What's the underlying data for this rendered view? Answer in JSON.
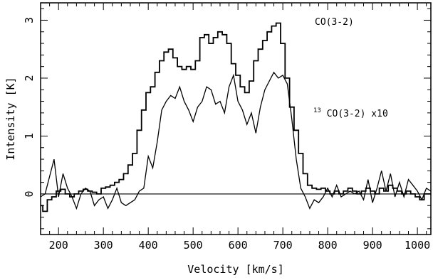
{
  "chart_data": {
    "type": "line",
    "xlabel": "Velocity  [km/s]",
    "ylabel": "Intensity [K]",
    "xlim": [
      160,
      1030
    ],
    "ylim": [
      -0.7,
      3.3
    ],
    "x_ticks": [
      200,
      300,
      400,
      500,
      600,
      700,
      800,
      900,
      1000
    ],
    "y_ticks": [
      0,
      1,
      2,
      3
    ],
    "zero_line": true,
    "series": [
      {
        "name": "CO(3-2)",
        "label_main": "CO(3-2)",
        "style": "step",
        "color": "#000000",
        "x": [
          160,
          170,
          180,
          190,
          200,
          210,
          220,
          230,
          240,
          250,
          260,
          270,
          280,
          290,
          300,
          310,
          320,
          330,
          340,
          350,
          360,
          370,
          380,
          390,
          400,
          410,
          420,
          430,
          440,
          450,
          460,
          470,
          480,
          490,
          500,
          510,
          520,
          530,
          540,
          550,
          560,
          570,
          580,
          590,
          600,
          610,
          620,
          630,
          640,
          650,
          660,
          670,
          680,
          690,
          700,
          710,
          720,
          730,
          740,
          750,
          760,
          770,
          780,
          790,
          800,
          810,
          820,
          830,
          840,
          850,
          860,
          870,
          880,
          890,
          900,
          910,
          920,
          930,
          940,
          950,
          960,
          970,
          980,
          990,
          1000,
          1010,
          1020,
          1030
        ],
        "y": [
          -0.2,
          -0.3,
          -0.1,
          -0.05,
          0.05,
          0.08,
          0.0,
          -0.05,
          0.0,
          0.05,
          0.08,
          0.05,
          0.03,
          0.0,
          0.1,
          0.12,
          0.15,
          0.2,
          0.25,
          0.35,
          0.5,
          0.7,
          1.1,
          1.45,
          1.75,
          1.85,
          2.1,
          2.3,
          2.45,
          2.5,
          2.35,
          2.2,
          2.15,
          2.2,
          2.15,
          2.3,
          2.7,
          2.75,
          2.6,
          2.7,
          2.8,
          2.75,
          2.6,
          2.25,
          2.05,
          1.85,
          1.75,
          1.95,
          2.3,
          2.5,
          2.65,
          2.8,
          2.9,
          2.95,
          2.6,
          2.0,
          1.5,
          1.1,
          0.7,
          0.35,
          0.15,
          0.1,
          0.08,
          0.1,
          0.05,
          0.0,
          0.05,
          0.0,
          0.05,
          0.1,
          0.05,
          0.0,
          0.05,
          0.1,
          0.05,
          0.0,
          0.1,
          0.05,
          0.15,
          0.1,
          0.05,
          0.0,
          0.05,
          0.0,
          -0.05,
          -0.1,
          0.0,
          0.0
        ]
      },
      {
        "name": "13CO(3-2) x10",
        "label_sup": "13",
        "label_main": "CO(3-2) x10",
        "style": "line",
        "color": "#000000",
        "x": [
          160,
          170,
          180,
          190,
          200,
          210,
          220,
          230,
          240,
          250,
          260,
          270,
          280,
          290,
          300,
          310,
          320,
          330,
          340,
          350,
          360,
          370,
          380,
          390,
          400,
          410,
          420,
          430,
          440,
          450,
          460,
          470,
          480,
          490,
          500,
          510,
          520,
          530,
          540,
          550,
          560,
          570,
          580,
          590,
          600,
          610,
          620,
          630,
          640,
          650,
          660,
          670,
          680,
          690,
          700,
          710,
          720,
          730,
          740,
          750,
          760,
          770,
          780,
          790,
          800,
          810,
          820,
          830,
          840,
          850,
          860,
          870,
          880,
          890,
          900,
          910,
          920,
          930,
          940,
          950,
          960,
          970,
          980,
          990,
          1000,
          1010,
          1020,
          1030
        ],
        "y": [
          -0.05,
          0.0,
          0.3,
          0.6,
          -0.05,
          0.35,
          0.1,
          -0.05,
          -0.25,
          0.0,
          0.1,
          0.05,
          -0.2,
          -0.1,
          -0.05,
          -0.25,
          -0.1,
          0.1,
          -0.15,
          -0.2,
          -0.15,
          -0.1,
          0.05,
          0.1,
          0.65,
          0.45,
          0.9,
          1.45,
          1.6,
          1.7,
          1.65,
          1.85,
          1.6,
          1.45,
          1.25,
          1.5,
          1.6,
          1.85,
          1.8,
          1.55,
          1.6,
          1.4,
          1.85,
          2.05,
          1.6,
          1.45,
          1.2,
          1.4,
          1.05,
          1.5,
          1.8,
          1.95,
          2.1,
          2.0,
          2.05,
          1.9,
          1.3,
          0.6,
          0.1,
          -0.05,
          -0.25,
          -0.1,
          -0.15,
          -0.05,
          0.1,
          -0.05,
          0.15,
          -0.05,
          0.0,
          0.05,
          0.0,
          0.05,
          -0.1,
          0.25,
          -0.15,
          0.1,
          0.4,
          0.05,
          0.35,
          -0.05,
          0.2,
          -0.05,
          0.25,
          0.15,
          0.05,
          -0.1,
          0.1,
          0.05
        ]
      }
    ]
  }
}
